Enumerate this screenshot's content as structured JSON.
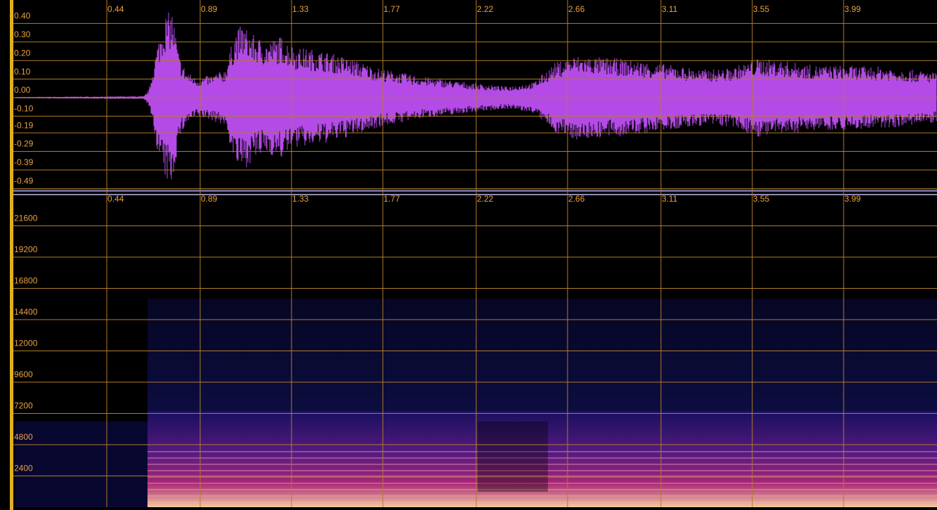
{
  "chart_data": [
    {
      "type": "waveform",
      "color": "#b44be6",
      "xlim": [
        0,
        4.44
      ],
      "xticks": [
        0.44,
        0.89,
        1.33,
        1.77,
        2.22,
        2.66,
        3.11,
        3.55,
        3.99
      ],
      "ylim": [
        -0.5,
        0.5
      ],
      "yticks": [
        {
          "value": 0.4,
          "label": "0.40"
        },
        {
          "value": 0.3,
          "label": "0.30"
        },
        {
          "value": 0.2,
          "label": "0.20"
        },
        {
          "value": 0.1,
          "label": "0.10"
        },
        {
          "value": 0,
          "label": "0.00"
        },
        {
          "value": -0.1,
          "label": "-0.10"
        },
        {
          "value": -0.19,
          "label": "-0.19"
        },
        {
          "value": -0.29,
          "label": "-0.29"
        },
        {
          "value": -0.39,
          "label": "-0.39"
        },
        {
          "value": -0.49,
          "label": "-0.49"
        }
      ],
      "grid": true
    },
    {
      "type": "spectrogram",
      "xlim": [
        0,
        4.44
      ],
      "xticks": [
        0.44,
        0.89,
        1.33,
        1.77,
        2.22,
        2.66,
        3.11,
        3.55,
        3.99
      ],
      "ylim": [
        0,
        24000
      ],
      "yticks": [
        2400,
        4800,
        7200,
        9600,
        12000,
        14400,
        16800,
        19200,
        21600
      ],
      "grid": true
    }
  ]
}
